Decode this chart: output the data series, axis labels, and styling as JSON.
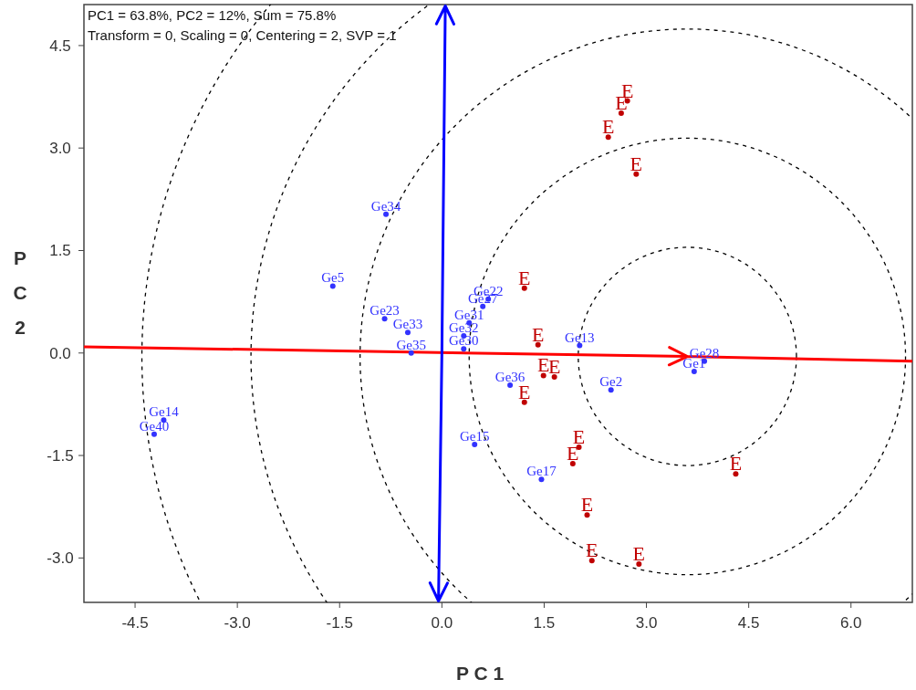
{
  "chart_data": {
    "type": "scatter",
    "xlabel": "P C 1",
    "ylabel": "P C 2",
    "annotations": [
      "PC1 = 63.8%, PC2 = 12%, Sum = 75.8%",
      "Transform = 0, Scaling = 0, Centering = 2, SVP = 1"
    ],
    "xlim": [
      -5.25,
      6.9
    ],
    "ylim": [
      -3.65,
      5.1
    ],
    "xticks": [
      {
        "value": -4.5,
        "label": "-4.5"
      },
      {
        "value": -3,
        "label": "-3.0"
      },
      {
        "value": -1.5,
        "label": "-1.5"
      },
      {
        "value": 0,
        "label": "0.0"
      },
      {
        "value": 1.5,
        "label": "1.5"
      },
      {
        "value": 3,
        "label": "3.0"
      },
      {
        "value": 4.5,
        "label": "4.5"
      },
      {
        "value": 6,
        "label": "6.0"
      }
    ],
    "yticks": [
      {
        "value": -3,
        "label": "-3.0"
      },
      {
        "value": -1.5,
        "label": "-1.5"
      },
      {
        "value": 0,
        "label": "0.0"
      },
      {
        "value": 1.5,
        "label": "1.5"
      },
      {
        "value": 3,
        "label": "3.0"
      },
      {
        "value": 4.5,
        "label": "4.5"
      }
    ],
    "marker": "circle",
    "series": [
      {
        "color": "#3333ff",
        "x": [
          -0.82,
          -1.6,
          -0.84,
          -4.08,
          -4.22,
          0.68,
          0.6,
          0.4,
          -0.5,
          0.32,
          0.32,
          -0.45,
          2.02,
          3.85,
          3.7,
          1.0,
          2.48,
          0.48,
          1.46
        ],
        "values": [
          2.03,
          0.98,
          0.5,
          -0.98,
          -1.19,
          0.79,
          0.68,
          0.44,
          0.3,
          0.25,
          0.06,
          0.0,
          0.11,
          -0.12,
          -0.27,
          -0.47,
          -0.54,
          -1.34,
          -1.85
        ],
        "value_labels": [
          "Ge34",
          "Ge5",
          "Ge23",
          "Ge14",
          "Ge40",
          "Ge22",
          "Ge27",
          "Ge31",
          "Ge33",
          "Ge32",
          "Ge30",
          "Ge35",
          "Ge13",
          "Ge28",
          "Ge1",
          "Ge36",
          "Ge2",
          "Ge15",
          "Ge17"
        ]
      },
      {
        "color": "#c00000",
        "x": [
          2.72,
          2.63,
          2.44,
          2.85,
          1.21,
          1.41,
          1.49,
          1.65,
          1.21,
          2.01,
          1.92,
          4.31,
          2.13,
          2.2,
          2.89
        ],
        "values": [
          3.69,
          3.51,
          3.16,
          2.62,
          0.95,
          0.12,
          -0.33,
          -0.35,
          -0.72,
          -1.38,
          -1.62,
          -1.77,
          -2.37,
          -3.04,
          -3.09
        ],
        "value_labels": [
          "E",
          "E",
          "E",
          "E",
          "E",
          "E",
          "E",
          "E",
          "E",
          "E",
          "E",
          "E",
          "E",
          "E",
          "E"
        ]
      }
    ]
  }
}
